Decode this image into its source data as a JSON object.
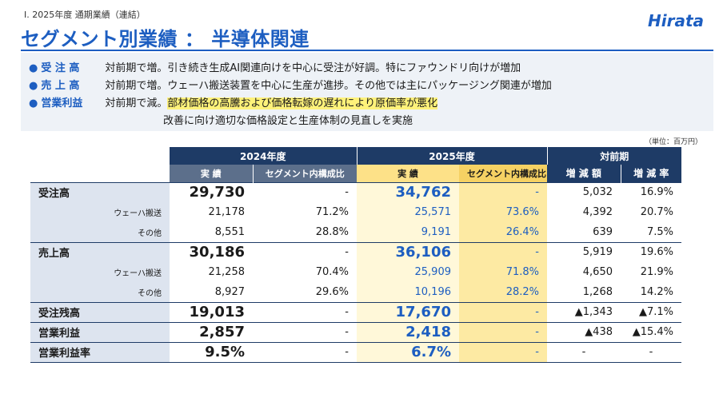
{
  "header": {
    "section_label": "Ⅰ. 2025年度 通期業績（連結）",
    "title": "セグメント別業績 ： 半導体関連",
    "logo": "Hirata"
  },
  "summary": [
    {
      "label": "受 注 高",
      "text": "対前期で増。引き続き生成AI関連向けを中心に受注が好調。特にファウンドリ向けが増加",
      "highlight": ""
    },
    {
      "label": "売 上 高",
      "text": "対前期で増。ウェーハ搬送装置を中心に生産が進捗。その他では主にパッケージング関連が増加",
      "highlight": ""
    },
    {
      "label": "営業利益",
      "text": "対前期で減。",
      "highlight": "部材価格の高騰および価格転嫁の遅れにより原価率が悪化",
      "line2": "改善に向け適切な価格設定と生産体制の見直しを実施"
    }
  ],
  "unit_note": "（単位：百万円）",
  "table": {
    "groups": {
      "fy2024": "2024年度",
      "fy2025": "2025年度",
      "yoy": "対前期"
    },
    "cols": {
      "actual": "実 績",
      "share": "セグメント内構成比",
      "diff": "増 減 額",
      "rate": "増 減 率"
    },
    "rows": [
      {
        "label": "受注高",
        "sub": "",
        "a24": "29,730",
        "s24": "-",
        "a25": "34,762",
        "s25": "-",
        "diff": "5,032",
        "rate": "16.9%"
      },
      {
        "label": "",
        "sub": "ウェーハ搬送",
        "a24": "21,178",
        "s24": "71.2%",
        "a25": "25,571",
        "s25": "73.6%",
        "diff": "4,392",
        "rate": "20.7%"
      },
      {
        "label": "",
        "sub": "その他",
        "a24": "8,551",
        "s24": "28.8%",
        "a25": "9,191",
        "s25": "26.4%",
        "diff": "639",
        "rate": "7.5%"
      },
      {
        "label": "売上高",
        "sub": "",
        "a24": "30,186",
        "s24": "-",
        "a25": "36,106",
        "s25": "-",
        "diff": "5,919",
        "rate": "19.6%"
      },
      {
        "label": "",
        "sub": "ウェーハ搬送",
        "a24": "21,258",
        "s24": "70.4%",
        "a25": "25,909",
        "s25": "71.8%",
        "diff": "4,650",
        "rate": "21.9%"
      },
      {
        "label": "",
        "sub": "その他",
        "a24": "8,927",
        "s24": "29.6%",
        "a25": "10,196",
        "s25": "28.2%",
        "diff": "1,268",
        "rate": "14.2%"
      },
      {
        "label": "受注残高",
        "sub": "",
        "a24": "19,013",
        "s24": "-",
        "a25": "17,670",
        "s25": "-",
        "diff": "▲1,343",
        "rate": "▲7.1%"
      },
      {
        "label": "営業利益",
        "sub": "",
        "a24": "2,857",
        "s24": "-",
        "a25": "2,418",
        "s25": "-",
        "diff": "▲438",
        "rate": "▲15.4%"
      },
      {
        "label": "営業利益率",
        "sub": "",
        "a24": "9.5%",
        "s24": "-",
        "a25": "6.7%",
        "s25": "-",
        "diff": "-",
        "rate": "-"
      }
    ]
  }
}
